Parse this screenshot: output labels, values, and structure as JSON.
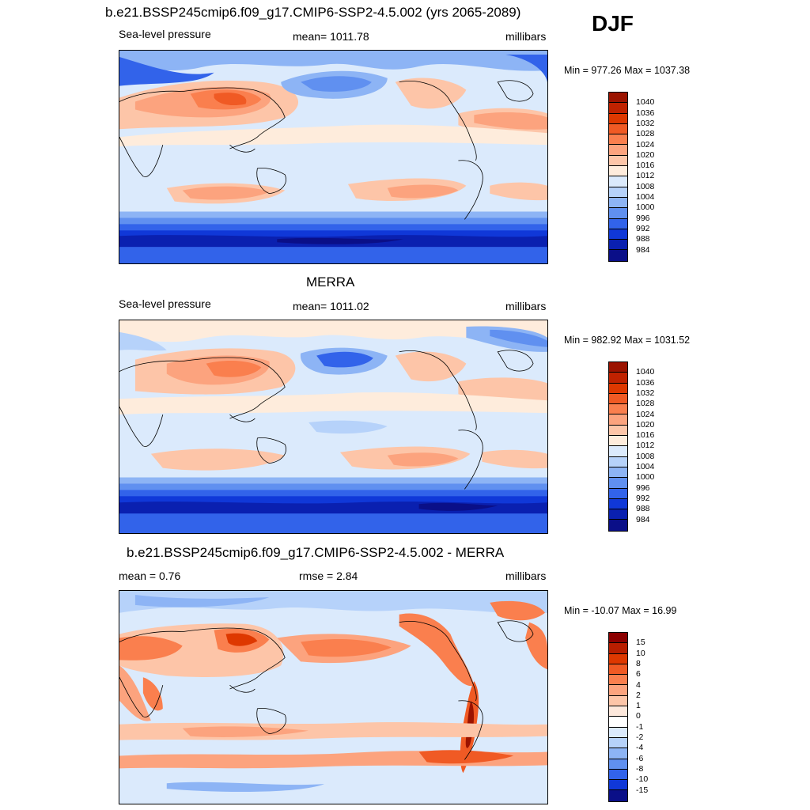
{
  "season": "DJF",
  "colors": {
    "abs_scale": [
      "#9b1300",
      "#c02200",
      "#de3800",
      "#f05a24",
      "#fa7f4e",
      "#fca37e",
      "#fdc5a8",
      "#feecdc",
      "#dbeafc",
      "#b6d2fa",
      "#8db4f5",
      "#6090f0",
      "#3263ea",
      "#1038d8",
      "#0a20b0",
      "#0a0f88"
    ],
    "diff_scale": [
      "#8b0000",
      "#b81e00",
      "#de3800",
      "#f05a24",
      "#fa7f4e",
      "#fca37e",
      "#fdc5a8",
      "#fde8dc",
      "#ffffff",
      "#dbeafc",
      "#b6d2fa",
      "#8db4f5",
      "#6090f0",
      "#3263ea",
      "#1038d8",
      "#0a0f88"
    ]
  },
  "panels": [
    {
      "title": "b.e21.BSSP245cmip6.f09_g17.CMIP6-SSP2-4.5.002 (yrs 2065-2089)",
      "left_label": "Sea-level pressure",
      "center_label": "mean= 1011.78",
      "right_label": "millibars",
      "minmax": "Min = 977.26 Max = 1037.38",
      "colorbar_labels": [
        "1040",
        "1036",
        "1032",
        "1028",
        "1024",
        "1020",
        "1016",
        "1012",
        "1008",
        "1004",
        "1000",
        "996",
        "992",
        "988",
        "984"
      ]
    },
    {
      "title": "MERRA",
      "left_label": "Sea-level pressure",
      "center_label": "mean= 1011.02",
      "right_label": "millibars",
      "minmax": "Min = 982.92 Max = 1031.52",
      "colorbar_labels": [
        "1040",
        "1036",
        "1032",
        "1028",
        "1024",
        "1020",
        "1016",
        "1012",
        "1008",
        "1004",
        "1000",
        "996",
        "992",
        "988",
        "984"
      ]
    },
    {
      "title": "b.e21.BSSP245cmip6.f09_g17.CMIP6-SSP2-4.5.002 - MERRA",
      "left_label": "mean =   0.76",
      "center_label": "rmse =   2.84",
      "right_label": "millibars",
      "minmax": "Min = -10.07 Max =  16.99",
      "colorbar_labels": [
        "15",
        "10",
        "8",
        "6",
        "4",
        "2",
        "1",
        "0",
        "-1",
        "-2",
        "-4",
        "-6",
        "-8",
        "-10",
        "-15"
      ]
    }
  ]
}
